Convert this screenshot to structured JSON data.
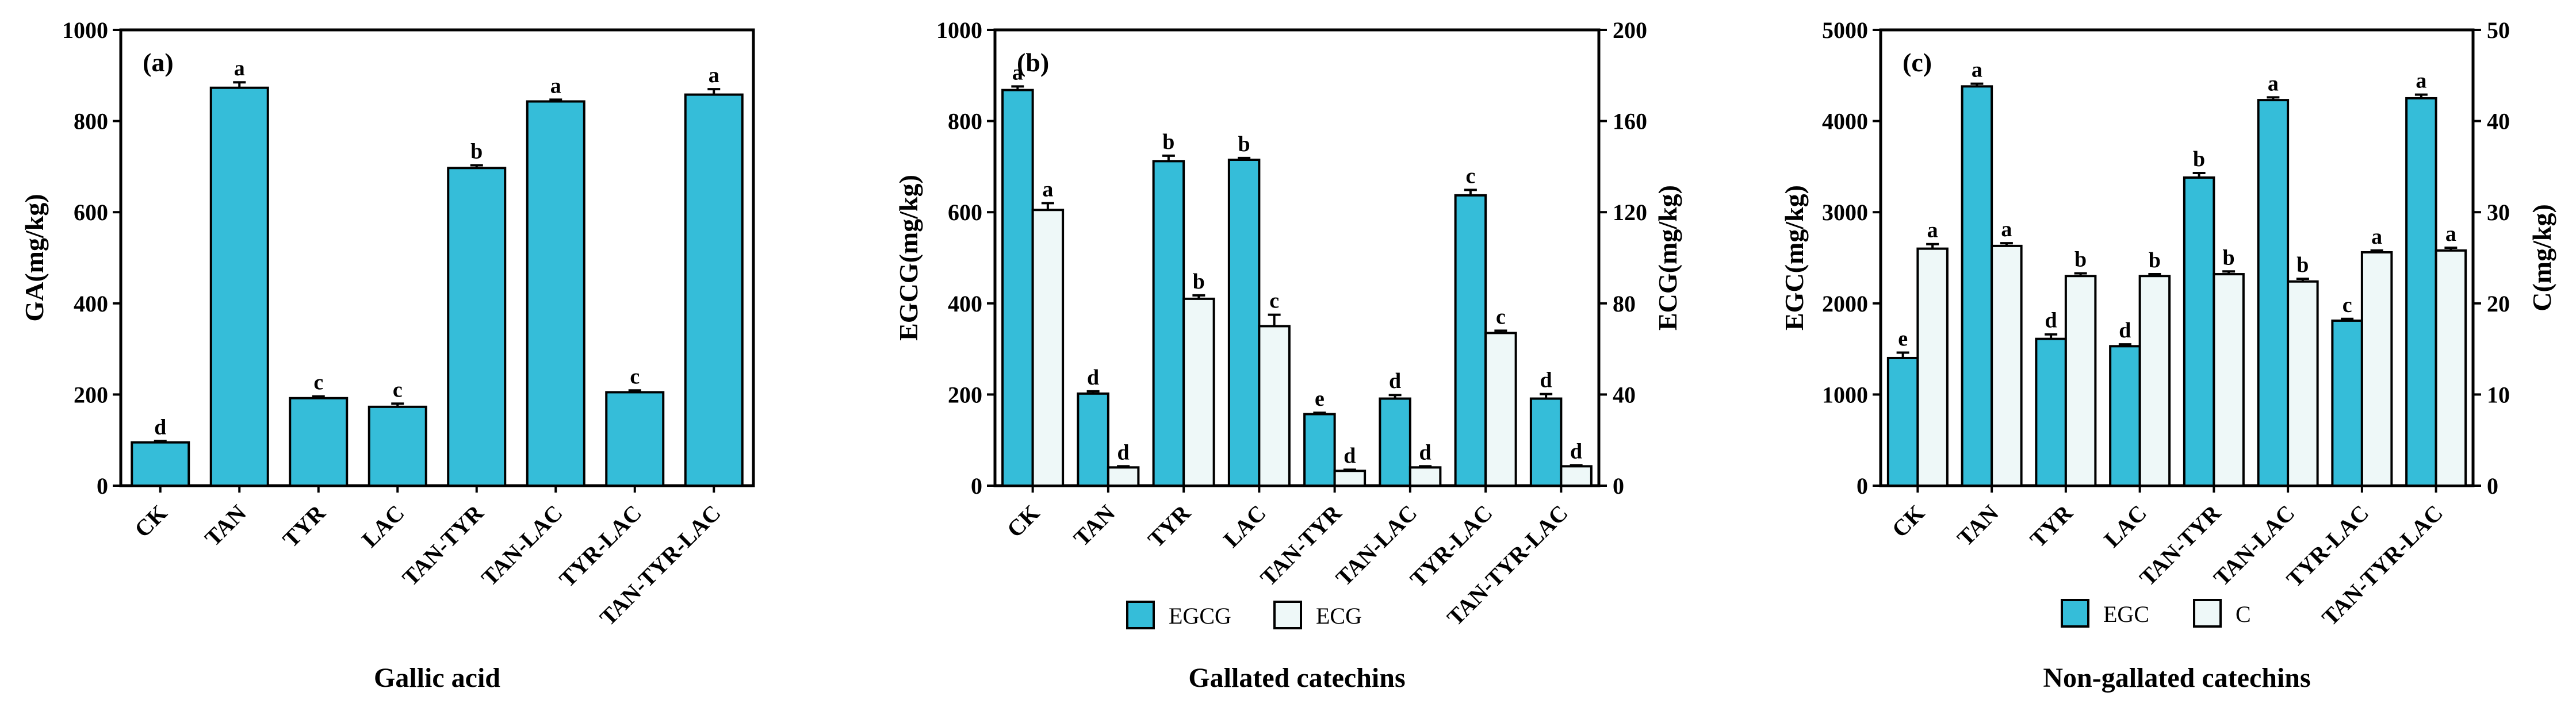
{
  "colors": {
    "primary": "#35BDD9",
    "secondary": "#EEF8F8",
    "stroke": "#000000"
  },
  "chart_data": [
    {
      "type": "bar",
      "panel_label": "(a)",
      "title": "Gallic acid",
      "categories": [
        "CK",
        "TAN",
        "TYR",
        "LAC",
        "TAN-TYR",
        "TAN-LAC",
        "TYR-LAC",
        "TAN-TYR-LAC"
      ],
      "ylabel": "GA(mg/kg)",
      "ylim": [
        0,
        1000
      ],
      "yticks": [
        0,
        200,
        400,
        600,
        800,
        1000
      ],
      "series": [
        {
          "name": "GA",
          "axis": "left",
          "color": "#35BDD9",
          "values": [
            95,
            873,
            192,
            173,
            697,
            843,
            205,
            858
          ],
          "errors": [
            3,
            12,
            4,
            7,
            6,
            4,
            4,
            12
          ],
          "letters": [
            "d",
            "a",
            "c",
            "c",
            "b",
            "a",
            "c",
            "a"
          ]
        }
      ],
      "legend": []
    },
    {
      "type": "bar",
      "panel_label": "(b)",
      "title": "Gallated catechins",
      "categories": [
        "CK",
        "TAN",
        "TYR",
        "LAC",
        "TAN-TYR",
        "TAN-LAC",
        "TYR-LAC",
        "TAN-TYR-LAC"
      ],
      "ylabel": "EGCG(mg/kg)",
      "ylabel_right": "ECG(mg/kg)",
      "ylim": [
        0,
        1000
      ],
      "ylim_right": [
        0,
        200
      ],
      "yticks": [
        0,
        200,
        400,
        600,
        800,
        1000
      ],
      "yticks_right": [
        0,
        40,
        80,
        120,
        160,
        200
      ],
      "series": [
        {
          "name": "EGCG",
          "axis": "left",
          "color": "#35BDD9",
          "values": [
            868,
            202,
            712,
            715,
            157,
            191,
            637,
            191
          ],
          "errors": [
            8,
            5,
            12,
            4,
            3,
            8,
            12,
            10
          ],
          "letters": [
            "a",
            "d",
            "b",
            "b",
            "e",
            "d",
            "c",
            "d"
          ]
        },
        {
          "name": "ECG",
          "axis": "right",
          "color": "#EEF8F8",
          "values": [
            121,
            8,
            82,
            70,
            6.5,
            8,
            67,
            8.5
          ],
          "errors": [
            3,
            0.5,
            1.5,
            5,
            0.5,
            0.5,
            1,
            0.5
          ],
          "letters": [
            "a",
            "d",
            "b",
            "c",
            "d",
            "d",
            "c",
            "d"
          ]
        }
      ],
      "legend": [
        "EGCG",
        "ECG"
      ]
    },
    {
      "type": "bar",
      "panel_label": "(c)",
      "title": "Non-gallated catechins",
      "categories": [
        "CK",
        "TAN",
        "TYR",
        "LAC",
        "TAN-TYR",
        "TAN-LAC",
        "TYR-LAC",
        "TAN-TYR-LAC"
      ],
      "ylabel": "EGC(mg/kg)",
      "ylabel_right": "C(mg/kg)",
      "ylim": [
        0,
        5000
      ],
      "ylim_right": [
        0,
        50
      ],
      "yticks": [
        0,
        1000,
        2000,
        3000,
        4000,
        5000
      ],
      "yticks_right": [
        0,
        10,
        20,
        30,
        40,
        50
      ],
      "series": [
        {
          "name": "EGC",
          "axis": "left",
          "color": "#35BDD9",
          "values": [
            1400,
            4380,
            1610,
            1530,
            3380,
            4230,
            1810,
            4250
          ],
          "errors": [
            60,
            30,
            50,
            20,
            50,
            30,
            20,
            40
          ],
          "letters": [
            "e",
            "a",
            "d",
            "d",
            "b",
            "a",
            "c",
            "a"
          ]
        },
        {
          "name": "C",
          "axis": "right",
          "color": "#EEF8F8",
          "values": [
            26,
            26.3,
            23,
            23,
            23.2,
            22.4,
            25.6,
            25.8
          ],
          "errors": [
            0.5,
            0.3,
            0.3,
            0.2,
            0.3,
            0.3,
            0.2,
            0.3
          ],
          "letters": [
            "a",
            "a",
            "b",
            "b",
            "b",
            "b",
            "a",
            "a"
          ]
        }
      ],
      "legend": [
        "EGC",
        "C"
      ]
    }
  ]
}
